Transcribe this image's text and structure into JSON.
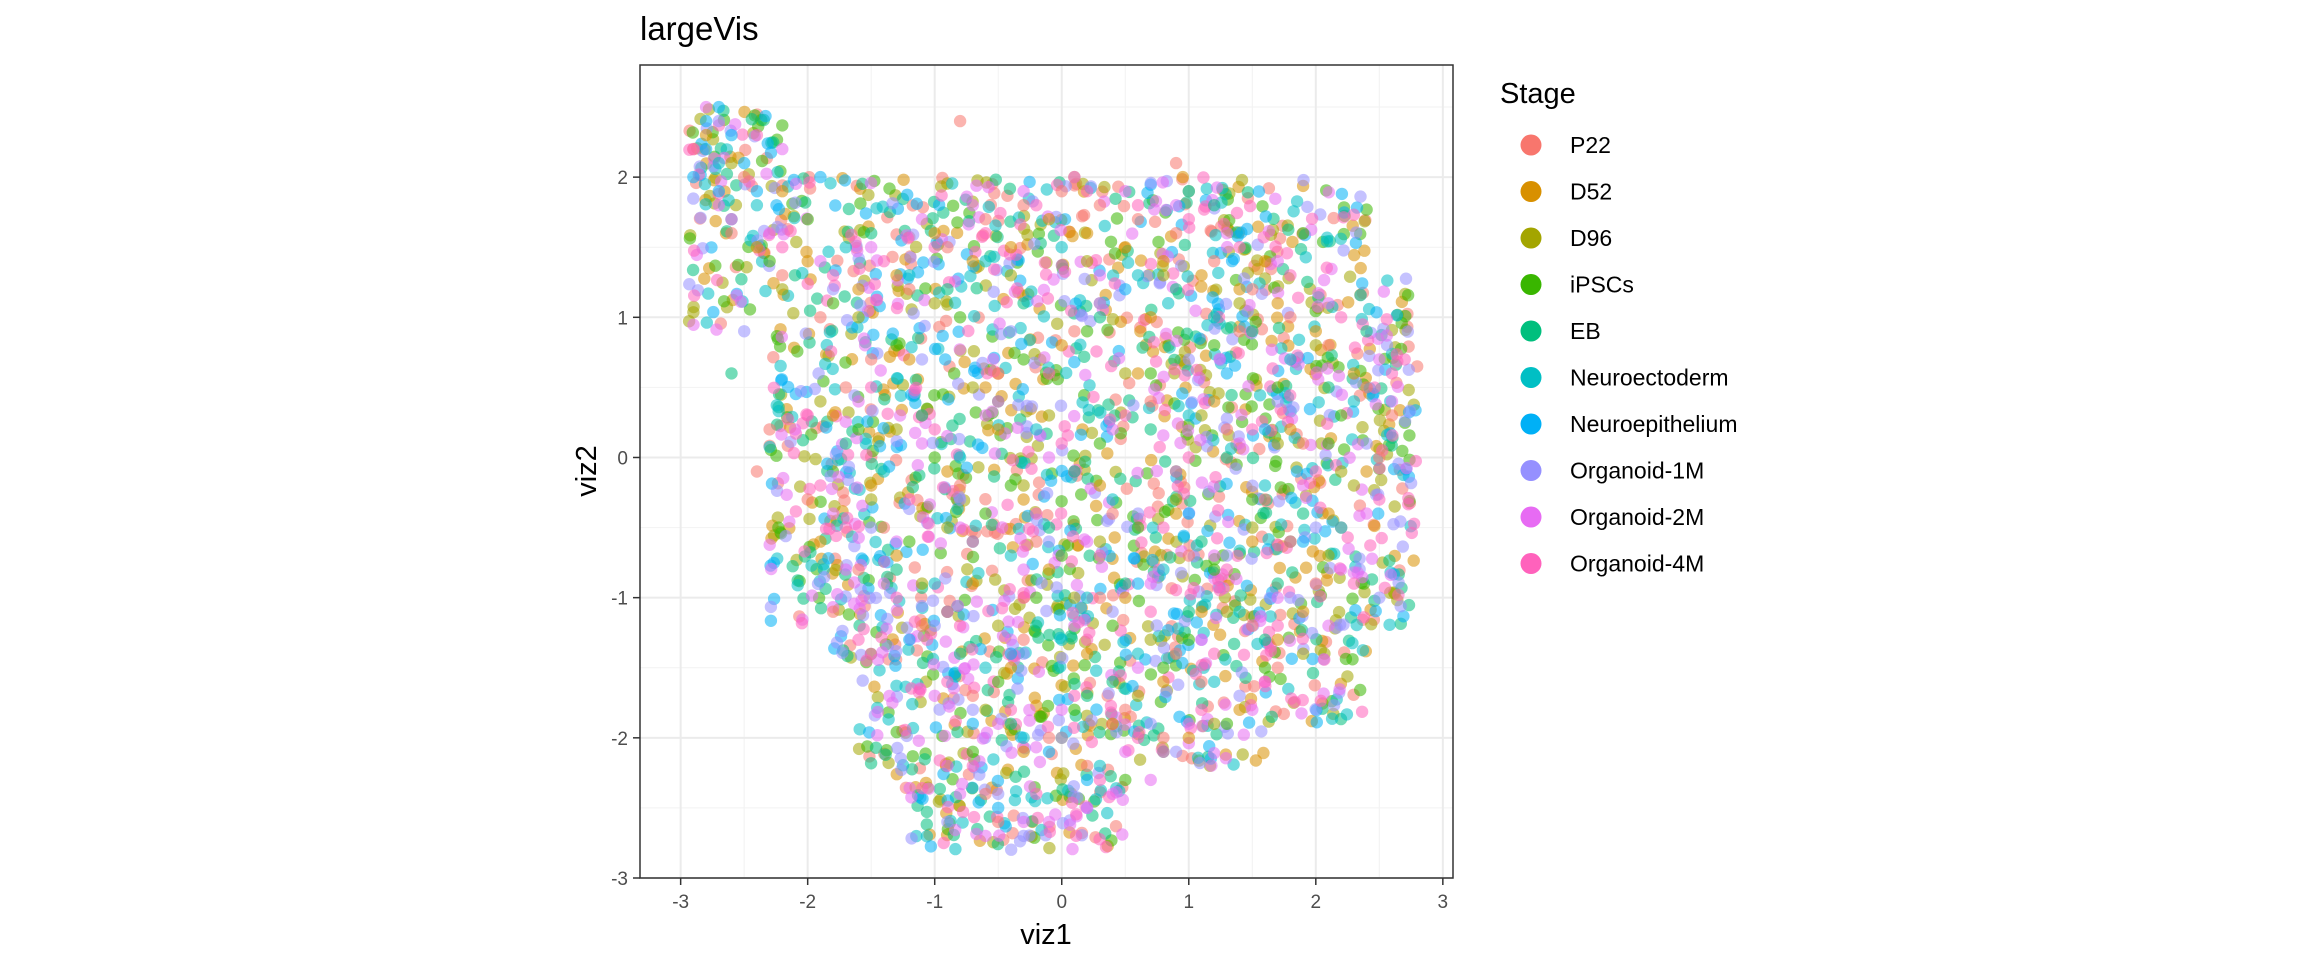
{
  "chart_data": {
    "type": "scatter",
    "title": "largeVis",
    "xlabel": "viz1",
    "ylabel": "viz2",
    "xlim": [
      -3.32,
      3.08
    ],
    "ylim": [
      -3.0,
      2.8
    ],
    "x_ticks": [
      -3,
      -2,
      -1,
      0,
      1,
      2,
      3
    ],
    "y_ticks": [
      -3,
      -2,
      -1,
      0,
      1,
      2
    ],
    "x_tick_labels": [
      "-3",
      "-2",
      "-1",
      "0",
      "1",
      "2",
      "3"
    ],
    "y_tick_labels": [
      "-3",
      "-2",
      "-1",
      "0",
      "1",
      "2"
    ],
    "grid": true,
    "point_alpha": 0.55,
    "legend": {
      "title": "Stage",
      "placement": "right",
      "entries": [
        {
          "name": "P22",
          "color": "#F8766D"
        },
        {
          "name": "D52",
          "color": "#D89000"
        },
        {
          "name": "D96",
          "color": "#A3A500"
        },
        {
          "name": "iPSCs",
          "color": "#39B600"
        },
        {
          "name": "EB",
          "color": "#00BF7D"
        },
        {
          "name": "Neuroectoderm",
          "color": "#00BFC4"
        },
        {
          "name": "Neuroepithelium",
          "color": "#00B0F6"
        },
        {
          "name": "Organoid-1M",
          "color": "#9590FF"
        },
        {
          "name": "Organoid-2M",
          "color": "#E76BF3"
        },
        {
          "name": "Organoid-4M",
          "color": "#FF62BC"
        }
      ]
    },
    "series": [
      {
        "name": "P22",
        "x": [
          -2.6,
          -2.2,
          -1.9,
          -1.5,
          -1.2,
          -0.9,
          -0.6,
          -0.3,
          0.0,
          0.3,
          0.6,
          0.9,
          1.2,
          1.5,
          1.8,
          2.1,
          2.4,
          -2.3,
          -1.7,
          -1.1,
          -0.5,
          0.1,
          0.7,
          1.3,
          1.9,
          2.5,
          -2.0,
          -1.4,
          -0.8,
          -0.2,
          0.4,
          1.0,
          1.6,
          2.2,
          -1.6,
          -0.9,
          -0.3,
          0.3,
          0.9,
          1.5,
          -0.7,
          -0.1,
          0.5,
          1.1,
          1.7,
          -0.6,
          0.2,
          0.8,
          -2.9,
          -2.5,
          -0.8,
          0.9,
          -2.4,
          -1.1,
          0.3,
          1.4,
          2.6,
          -0.5,
          -1.8,
          2.0
        ],
        "y": [
          1.6,
          1.3,
          1.0,
          0.7,
          1.2,
          1.5,
          1.7,
          1.8,
          1.9,
          1.8,
          1.7,
          1.6,
          1.4,
          1.2,
          1.0,
          0.8,
          0.5,
          0.2,
          0.5,
          0.3,
          0.6,
          0.9,
          0.4,
          0.2,
          0.1,
          0.0,
          -0.3,
          -0.5,
          -0.2,
          -0.6,
          -0.4,
          -0.7,
          -0.3,
          -0.5,
          -0.8,
          -1.1,
          -1.3,
          -1.0,
          -1.4,
          -1.2,
          -1.7,
          -2.0,
          -1.8,
          -1.6,
          -1.5,
          -2.4,
          -2.2,
          -2.0,
          2.2,
          2.0,
          2.4,
          2.1,
          -0.1,
          -1.2,
          1.1,
          0.9,
          0.3,
          -2.6,
          -1.1,
          -0.9
        ]
      },
      {
        "name": "D52",
        "x": [
          -2.4,
          -2.0,
          -1.6,
          -1.3,
          -1.0,
          -0.7,
          -0.4,
          -0.1,
          0.2,
          0.5,
          0.8,
          1.1,
          1.4,
          1.7,
          2.0,
          2.3,
          -1.8,
          -1.2,
          -0.6,
          0.0,
          0.6,
          1.2,
          1.8,
          2.4,
          -1.5,
          -0.9,
          -0.3,
          0.3,
          0.9,
          1.5,
          2.1,
          -1.3,
          -0.7,
          -0.1,
          0.5,
          1.1,
          1.7,
          -0.4,
          0.2,
          0.8,
          1.4,
          -0.3,
          0.4,
          1.0,
          -2.8,
          -2.2,
          0.1,
          1.6,
          -1.9,
          -0.5,
          0.7,
          1.9
        ],
        "y": [
          1.5,
          1.4,
          1.2,
          1.3,
          1.6,
          1.4,
          1.5,
          1.7,
          1.6,
          1.5,
          1.4,
          1.3,
          1.2,
          1.1,
          0.9,
          0.6,
          0.3,
          0.7,
          0.5,
          0.8,
          0.6,
          0.4,
          0.2,
          -0.1,
          -0.2,
          -0.1,
          -0.3,
          -0.2,
          -0.4,
          -0.6,
          -0.4,
          -0.7,
          -0.9,
          -0.8,
          -1.0,
          -1.1,
          -1.3,
          -1.5,
          -1.4,
          -1.6,
          -1.8,
          -2.1,
          -1.9,
          -2.0,
          2.3,
          1.9,
          2.0,
          1.4,
          -0.6,
          0.2,
          1.0,
          -1.1
        ]
      },
      {
        "name": "D96",
        "x": [
          -2.2,
          -1.6,
          -1.0,
          -0.4,
          0.2,
          0.8,
          1.4,
          2.0,
          -1.9,
          -1.3,
          -0.7,
          -0.1,
          0.5,
          1.1,
          1.7,
          2.3,
          -1.5,
          -0.9,
          -0.3,
          0.3,
          0.9,
          1.5,
          2.1,
          -1.1,
          -0.5,
          0.1,
          0.7,
          1.3,
          1.9,
          -0.6,
          0.0,
          0.6,
          1.2,
          -2.6,
          1.0,
          2.2
        ],
        "y": [
          1.2,
          1.0,
          1.1,
          1.3,
          1.4,
          1.3,
          1.1,
          0.8,
          0.4,
          0.2,
          0.5,
          0.3,
          0.6,
          0.3,
          0.1,
          -0.2,
          -0.3,
          -0.5,
          -0.2,
          -0.6,
          -0.3,
          -0.5,
          -0.7,
          -0.9,
          -1.2,
          -1.0,
          -1.3,
          -1.1,
          -1.4,
          -1.8,
          -2.0,
          -1.7,
          -1.9,
          2.1,
          1.9,
          -0.1
        ]
      },
      {
        "name": "iPSCs",
        "x": [
          -2.3,
          -1.8,
          -1.3,
          -0.8,
          -0.3,
          0.2,
          0.7,
          1.2,
          1.7,
          2.2,
          -1.6,
          -1.0,
          -0.4,
          0.3,
          0.9,
          1.5,
          2.1,
          -1.2,
          -0.6,
          0.0,
          0.6,
          1.2,
          1.8,
          -0.9,
          -0.2,
          0.4,
          1.0,
          1.6,
          -0.5,
          0.1,
          0.8,
          1.3,
          -2.0,
          1.9,
          -0.7,
          0.5
        ],
        "y": [
          1.4,
          1.1,
          0.8,
          1.0,
          0.7,
          0.9,
          0.6,
          0.8,
          0.5,
          0.3,
          0.2,
          0.0,
          -0.2,
          0.1,
          -0.1,
          -0.3,
          0.1,
          -0.6,
          -0.4,
          -0.7,
          -0.5,
          -0.8,
          -0.6,
          -1.1,
          -1.0,
          -1.2,
          -1.3,
          -1.5,
          -1.6,
          -1.8,
          -1.5,
          -1.9,
          1.7,
          1.6,
          -2.1,
          -2.3
        ]
      },
      {
        "name": "EB",
        "x": [
          -2.1,
          -1.5,
          -0.9,
          -0.3,
          0.3,
          0.9,
          1.5,
          2.1,
          -1.7,
          -1.1,
          -0.5,
          0.1,
          0.7,
          1.3,
          1.9,
          -1.3,
          -0.7,
          -0.1,
          0.5,
          1.1,
          1.7,
          -0.8,
          -0.2,
          0.4,
          1.0,
          1.6,
          -0.4,
          0.2,
          0.8,
          -2.6,
          1.2,
          2.4
        ],
        "y": [
          1.3,
          1.6,
          1.2,
          1.1,
          1.0,
          1.2,
          0.9,
          0.5,
          0.1,
          0.3,
          0.4,
          -0.1,
          0.2,
          0.0,
          -0.4,
          -0.8,
          -0.6,
          -0.5,
          -0.9,
          -0.6,
          -0.9,
          -1.4,
          -1.2,
          -1.6,
          -1.1,
          -1.3,
          -1.9,
          -1.7,
          -2.1,
          0.6,
          1.8,
          0.9
        ]
      },
      {
        "name": "Neuroectoderm",
        "x": [
          -1.7,
          -1.2,
          -0.6,
          0.0,
          0.6,
          1.2,
          1.8,
          2.3,
          -1.4,
          -0.8,
          -0.2,
          0.4,
          1.0,
          1.6,
          2.2,
          -1.0,
          -0.4,
          0.2,
          0.8,
          1.4,
          -0.6,
          0.0,
          0.6,
          1.2,
          -0.3,
          0.3,
          -2.7,
          -2.4,
          1.0
        ],
        "y": [
          1.5,
          1.3,
          1.4,
          1.5,
          1.3,
          1.0,
          0.7,
          0.4,
          -0.1,
          0.0,
          0.2,
          -0.3,
          0.3,
          -0.2,
          -0.5,
          -0.9,
          -0.7,
          -1.0,
          -0.8,
          -1.1,
          -1.5,
          -1.3,
          -1.4,
          -1.6,
          -2.0,
          -2.2,
          2.1,
          1.8,
          1.9
        ]
      },
      {
        "name": "Neuroepithelium",
        "x": [
          -2.9,
          -2.8,
          -2.7,
          -2.6,
          -2.5,
          -2.4,
          -2.8,
          -2.6,
          -2.7,
          -1.9,
          -0.7,
          0.5,
          1.3,
          1.9,
          -0.4,
          0.6,
          1.6,
          -1.2,
          0.2,
          1.0,
          -0.5,
          -0.1
        ],
        "y": [
          2.0,
          2.2,
          1.9,
          2.3,
          2.1,
          1.9,
          2.4,
          1.7,
          2.5,
          2.0,
          -1.9,
          1.2,
          0.6,
          -0.6,
          -1.4,
          -0.9,
          0.2,
          -1.3,
          -2.3,
          -0.4,
          -2.5,
          -2.1
        ]
      },
      {
        "name": "Organoid-1M",
        "x": [
          -2.5,
          -1.8,
          -1.1,
          -0.4,
          0.3,
          1.0,
          1.7,
          2.4,
          -1.5,
          -0.8,
          -0.1,
          0.6,
          1.3,
          2.0,
          -1.0,
          -0.3,
          0.4,
          1.1,
          1.8,
          -0.7,
          0.0,
          0.7,
          1.4,
          -0.5,
          0.2,
          0.9,
          -0.9,
          -0.3,
          2.5,
          -2.7
        ],
        "y": [
          0.9,
          1.2,
          0.7,
          0.9,
          1.1,
          0.7,
          0.4,
          0.1,
          -0.5,
          -0.3,
          -0.6,
          -0.4,
          -0.7,
          -0.5,
          -1.2,
          -1.4,
          -1.1,
          -1.3,
          -1.0,
          -1.8,
          -2.0,
          -1.9,
          -1.7,
          -2.4,
          -2.5,
          -2.1,
          -2.6,
          -2.7,
          -1.0,
          2.4
        ]
      },
      {
        "name": "Organoid-2M",
        "x": [
          -2.7,
          -2.3,
          -1.9,
          -1.5,
          -1.1,
          -0.7,
          -0.3,
          0.1,
          0.5,
          0.9,
          1.3,
          1.7,
          2.1,
          2.5,
          -2.1,
          -1.6,
          -1.1,
          -0.6,
          -0.1,
          0.4,
          0.9,
          1.4,
          1.9,
          2.4,
          -1.8,
          -1.3,
          -0.8,
          -0.3,
          0.2,
          0.7,
          1.2,
          1.7,
          2.2,
          -1.4,
          -0.9,
          -0.4,
          0.1,
          0.6,
          1.1,
          1.6,
          2.1,
          -1.0,
          -0.5,
          0.0,
          0.5,
          1.0,
          1.5,
          -0.8,
          -0.3,
          0.2,
          0.7,
          -0.6,
          -0.1,
          0.4,
          -2.8,
          -2.2,
          -1.7,
          2.6,
          -0.9,
          0.3
        ],
        "y": [
          1.8,
          1.6,
          1.4,
          1.5,
          1.7,
          1.8,
          1.9,
          2.0,
          1.9,
          1.8,
          1.6,
          1.4,
          1.1,
          0.7,
          0.2,
          0.4,
          0.1,
          0.3,
          0.0,
          0.2,
          -0.1,
          0.1,
          -0.2,
          -0.4,
          -0.4,
          -0.6,
          -0.5,
          -0.8,
          -0.6,
          -0.9,
          -0.7,
          -1.0,
          -0.8,
          -0.9,
          -1.1,
          -1.3,
          -1.2,
          -1.5,
          -1.3,
          -1.6,
          -1.2,
          -1.7,
          -1.9,
          -1.8,
          -2.1,
          -1.9,
          -1.8,
          -2.4,
          -2.6,
          -2.5,
          -2.3,
          -2.7,
          -2.6,
          -2.4,
          2.5,
          2.2,
          -0.8,
          0.4,
          -2.2,
          1.3
        ]
      },
      {
        "name": "Organoid-4M",
        "x": [
          -2.6,
          -2.2,
          -1.8,
          -1.4,
          -1.0,
          -0.6,
          -0.2,
          0.2,
          0.6,
          1.0,
          1.4,
          1.8,
          2.2,
          2.6,
          -2.0,
          -1.5,
          -1.0,
          -0.5,
          0.0,
          0.5,
          1.0,
          1.5,
          2.0,
          2.5,
          -1.7,
          -1.2,
          -0.7,
          -0.2,
          0.3,
          0.8,
          1.3,
          1.8,
          2.3,
          -1.3,
          -0.8,
          -0.3,
          0.2,
          0.7,
          1.2,
          1.7,
          -0.9,
          -0.4,
          0.1,
          0.6,
          1.1,
          1.6,
          -0.7,
          -0.2,
          0.3,
          0.8,
          -2.9,
          -2.4,
          -1.9,
          2.7,
          -1.6,
          -0.1
        ],
        "y": [
          1.7,
          1.5,
          1.3,
          1.4,
          1.5,
          1.6,
          1.8,
          1.9,
          1.8,
          1.7,
          1.5,
          1.3,
          1.0,
          0.6,
          0.3,
          0.5,
          0.2,
          0.4,
          0.1,
          0.3,
          0.0,
          0.2,
          -0.1,
          -0.3,
          -0.5,
          -0.3,
          -0.6,
          -0.4,
          -0.7,
          -0.5,
          -0.8,
          -0.6,
          -0.9,
          -1.0,
          -1.2,
          -1.0,
          -1.3,
          -1.1,
          -1.4,
          -1.2,
          -1.6,
          -1.8,
          -1.7,
          -2.0,
          -1.8,
          -1.6,
          -2.2,
          -2.4,
          -2.3,
          -2.1,
          2.2,
          2.3,
          -0.2,
          0.7,
          -1.3,
          0.6
        ]
      }
    ]
  }
}
